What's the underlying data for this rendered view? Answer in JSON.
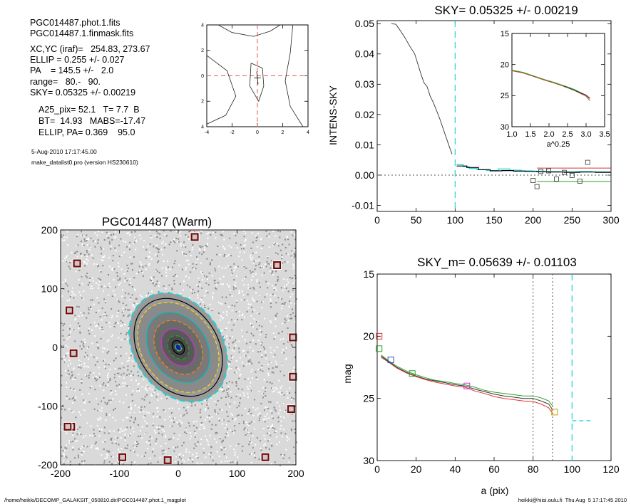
{
  "info": {
    "file1": "PGC014487.phot.1.fits",
    "file2": "PGC014487.1.finmask.fits",
    "xcyc": "XC,YC (iraf)=   254.83, 273.67",
    "ellip": "ELLIP = 0.255 +/- 0.027",
    "pa": "PA    = 145.5 +/-   2.0",
    "range": "range=   80.-   90.",
    "sky": "SKY= 0.05325 +/- 0.00219",
    "a25": "A25_pix= 52.1   T= 7.7  B",
    "bt": "BT=  14.93   MABS=-17.47",
    "ellippa": "ELLIP, PA= 0.369    95.0",
    "date": "5-Aug-2010 17:17:45.00",
    "program": "make_datalist0.pro (version HS230610)"
  },
  "footer": {
    "path": "/home/heikki/DECOMP_GALAKSIT_050810.dir/PGC014487.phot.1_magplot",
    "user": "heikki@hiisi.oulu.fi  Thu Aug  5 17:17:45 2010"
  },
  "chart_data": [
    {
      "type": "line",
      "id": "center-contour",
      "xlim": [
        -4,
        4
      ],
      "ylim": [
        -4,
        4
      ],
      "x_ticks": [
        -4,
        -2,
        0,
        2,
        4
      ],
      "y_ticks": [
        -4,
        -2,
        0,
        2,
        4
      ],
      "xlabel": "",
      "ylabel": "",
      "crosshair": [
        0,
        0
      ],
      "contours": [
        [
          [
            -0.5,
            1.0
          ],
          [
            0.4,
            0.6
          ],
          [
            0.5,
            -0.8
          ],
          [
            0.1,
            -2.0
          ],
          [
            -0.6,
            -0.8
          ],
          [
            -0.5,
            1.0
          ]
        ],
        [
          [
            -3.1,
            4.0
          ],
          [
            -2.0,
            3.4
          ],
          [
            -0.3,
            3.1
          ],
          [
            1.0,
            3.5
          ],
          [
            1.8,
            4.0
          ]
        ],
        [
          [
            2.8,
            4.0
          ],
          [
            2.6,
            1.8
          ],
          [
            2.2,
            -0.4
          ],
          [
            2.6,
            -2.4
          ],
          [
            3.6,
            -4.0
          ]
        ],
        [
          [
            -4.0,
            1.6
          ],
          [
            -2.4,
            0.4
          ],
          [
            -1.7,
            -1.6
          ],
          [
            -2.5,
            -3.1
          ],
          [
            -4.0,
            -3.8
          ]
        ]
      ]
    },
    {
      "type": "line",
      "id": "sky-profile",
      "title": "SKY= 0.05325 +/- 0.00219",
      "xlabel": "",
      "ylabel": "INTENS-SKY",
      "xlim": [
        0,
        300
      ],
      "ylim": [
        -0.012,
        0.051
      ],
      "x_ticks": [
        0,
        50,
        100,
        150,
        200,
        250,
        300
      ],
      "y_ticks": [
        -0.01,
        0.0,
        0.01,
        0.02,
        0.03,
        0.04,
        0.05
      ],
      "y_tick_labels": [
        "-0.01",
        "0.00",
        "0.01",
        "0.02",
        "0.03",
        "0.04",
        "0.05"
      ],
      "sky_radius": 100,
      "series": [
        {
          "color": "#333333",
          "x": [
            18,
            24,
            30,
            36,
            42,
            48,
            52,
            56,
            60,
            64,
            68,
            72,
            76,
            80,
            84,
            88,
            92,
            96
          ],
          "y": [
            0.05,
            0.0498,
            0.0476,
            0.0452,
            0.0425,
            0.0401,
            0.0368,
            0.0335,
            0.0305,
            0.0292,
            0.0261,
            0.024,
            0.0214,
            0.0188,
            0.0158,
            0.0128,
            0.0098,
            0.0069
          ]
        },
        {
          "color": "#1ad3d3",
          "x": [
            102,
            110,
            118,
            128,
            140,
            155,
            170,
            185,
            200,
            215,
            235,
            255,
            275,
            300
          ],
          "y": [
            0.0035,
            0.0028,
            0.0022,
            0.0018,
            0.0015,
            0.002,
            0.0016,
            0.0014,
            0.0013,
            0.0012,
            0.0011,
            0.0012,
            0.0011,
            0.0011
          ]
        },
        {
          "color": "#000000",
          "x": [
            102,
            115,
            130,
            145,
            160,
            175,
            190,
            205,
            220,
            240,
            260,
            280,
            300
          ],
          "y": [
            0.003,
            0.0025,
            0.0018,
            0.0014,
            0.0015,
            0.0013,
            0.0012,
            0.0011,
            0.001,
            0.0009,
            0.001,
            0.0009,
            0.0009
          ]
        }
      ],
      "markers": {
        "x": [
          200,
          205,
          210,
          220,
          230,
          240,
          250,
          260,
          270
        ],
        "y": [
          -0.0018,
          -0.0038,
          0.0012,
          0.0014,
          -0.0013,
          0.0009,
          -0.0001,
          -0.002,
          0.0042
        ]
      },
      "band_lines": [
        {
          "color": "#e03030",
          "y": 0.0023,
          "x": [
            205,
            300
          ]
        },
        {
          "color": "#2aa02a",
          "y": -0.0021,
          "x": [
            205,
            300
          ]
        }
      ],
      "inset": {
        "xlabel": "a^0.25",
        "xlim": [
          1.0,
          3.5
        ],
        "ylim": [
          15,
          30
        ],
        "x_ticks": [
          1.0,
          1.5,
          2.0,
          2.5,
          3.0,
          3.5
        ],
        "x_tick_labels": [
          "1.0",
          "1.5",
          "2.0",
          "2.5",
          "3.0",
          "3.5"
        ],
        "y_ticks": [
          15,
          20,
          25,
          30
        ],
        "series": [
          {
            "color": "#e03030",
            "x": [
              1.0,
              1.3,
              1.6,
              1.9,
              2.1,
              2.3,
              2.5,
              2.7,
              2.85,
              3.0,
              3.1
            ],
            "y": [
              21.0,
              21.35,
              21.95,
              22.55,
              22.9,
              23.3,
              23.7,
              24.2,
              24.65,
              25.1,
              25.8
            ]
          },
          {
            "color": "#2aa02a",
            "x": [
              1.0,
              1.3,
              1.6,
              1.9,
              2.1,
              2.3,
              2.5,
              2.7,
              2.85,
              3.0,
              3.1
            ],
            "y": [
              20.9,
              21.25,
              21.85,
              22.45,
              22.8,
              23.2,
              23.6,
              24.05,
              24.5,
              24.9,
              25.5
            ]
          },
          {
            "color": "#333333",
            "x": [
              2.4,
              2.6,
              2.8,
              3.0,
              3.1
            ],
            "y": [
              23.5,
              23.95,
              24.45,
              24.9,
              25.4
            ]
          }
        ]
      }
    },
    {
      "type": "scatter",
      "id": "galaxy-image",
      "title": "PGC014487 (Warm)",
      "xlabel": "",
      "ylabel": "",
      "xlim": [
        -200,
        200
      ],
      "ylim": [
        -200,
        200
      ],
      "x_ticks": [
        -200,
        -100,
        0,
        100,
        200
      ],
      "y_ticks": [
        -200,
        -100,
        0,
        100,
        200
      ],
      "masked_stars": {
        "x": [
          28,
          -172,
          -185,
          168,
          -178,
          195,
          -182,
          195,
          192,
          -95,
          -18,
          148,
          -188
        ],
        "y": [
          188,
          143,
          63,
          140,
          -10,
          17,
          -135,
          -50,
          -105,
          -187,
          -192,
          -187,
          -135
        ]
      },
      "ellipse": {
        "cx": 0,
        "cy": 0,
        "a": 90,
        "b": 67,
        "pa": 145.5,
        "sky_radius": 100
      },
      "isophote_colors": [
        "#ffd400",
        "#00c0c0",
        "#ff8800",
        "#cc33cc",
        "#2aa02a",
        "#000000"
      ]
    },
    {
      "type": "line",
      "id": "mag-profile",
      "title": "SKY_m=  0.05639 +/- 0.01103",
      "xlabel": "a (pix)",
      "ylabel": "mag",
      "xlim": [
        0,
        120
      ],
      "ylim": [
        30,
        15
      ],
      "x_ticks": [
        0,
        20,
        40,
        60,
        80,
        100,
        120
      ],
      "y_ticks": [
        15,
        20,
        25,
        30
      ],
      "vlines_dotted": [
        80,
        90
      ],
      "sky_radius": 100,
      "series": [
        {
          "color": "#2aa02a",
          "x": [
            2,
            6,
            10,
            15,
            20,
            25,
            30,
            35,
            40,
            45,
            50,
            55,
            60,
            65,
            70,
            75,
            80,
            84,
            88,
            90
          ],
          "y": [
            21.5,
            22.0,
            22.4,
            22.8,
            23.1,
            23.35,
            23.55,
            23.65,
            23.8,
            23.9,
            24.1,
            24.35,
            24.5,
            24.6,
            24.7,
            24.8,
            24.8,
            24.95,
            25.2,
            25.6
          ]
        },
        {
          "color": "#333333",
          "x": [
            2,
            6,
            10,
            15,
            20,
            25,
            30,
            35,
            40,
            45,
            50,
            55,
            60,
            65,
            70,
            75,
            80,
            84,
            88,
            90
          ],
          "y": [
            21.6,
            22.05,
            22.5,
            22.9,
            23.2,
            23.45,
            23.6,
            23.75,
            23.9,
            24.0,
            24.25,
            24.45,
            24.65,
            24.8,
            24.9,
            25.0,
            25.0,
            25.2,
            25.45,
            25.9
          ]
        },
        {
          "color": "#e03030",
          "x": [
            2,
            6,
            10,
            15,
            20,
            25,
            30,
            35,
            40,
            45,
            50,
            55,
            60,
            65,
            70,
            75,
            80,
            84,
            88,
            90
          ],
          "y": [
            21.7,
            22.1,
            22.55,
            22.95,
            23.25,
            23.5,
            23.7,
            23.85,
            24.0,
            24.1,
            24.4,
            24.6,
            24.85,
            25.0,
            25.1,
            25.2,
            25.25,
            25.45,
            25.75,
            26.2
          ]
        }
      ],
      "markers": [
        {
          "color": "#e03030",
          "x": 1,
          "y": 20.0
        },
        {
          "color": "#2aa02a",
          "x": 1,
          "y": 21.0
        },
        {
          "color": "#2050c0",
          "x": 7,
          "y": 21.9
        },
        {
          "color": "#2aa02a",
          "x": 18,
          "y": 23.0
        },
        {
          "color": "#cc33cc",
          "x": 46,
          "y": 24.0
        },
        {
          "color": "#c8a000",
          "x": 91,
          "y": 26.1
        }
      ],
      "sky_segment": {
        "color": "#1ad3d3",
        "x": [
          100,
          110
        ],
        "y": 26.8
      }
    }
  ]
}
